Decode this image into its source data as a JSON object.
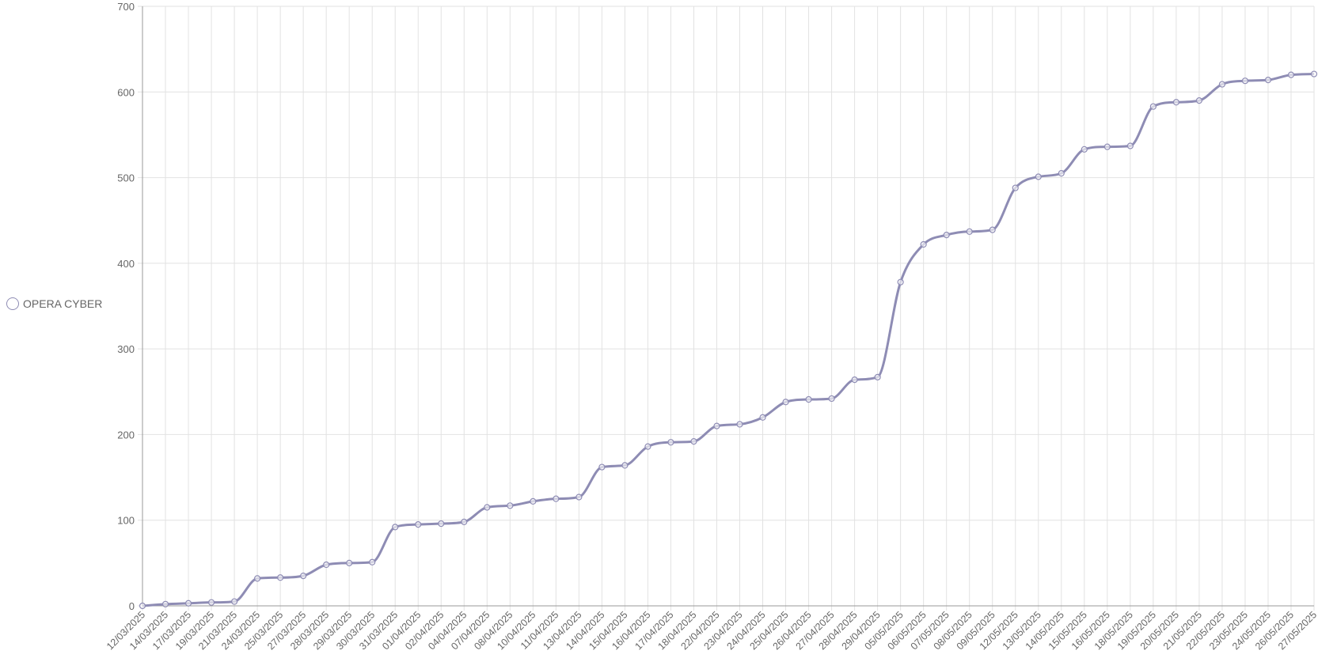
{
  "chart_data": {
    "type": "line",
    "title": "",
    "xlabel": "",
    "ylabel": "",
    "ylim": [
      0,
      700
    ],
    "yticks": [
      0,
      100,
      200,
      300,
      400,
      500,
      600,
      700
    ],
    "grid": true,
    "legend_position": "left",
    "colors": {
      "series": "#8e8cb4",
      "grid": "#e2e2e2",
      "axis": "#999999",
      "text": "#666666"
    },
    "categories": [
      "12/03/2025",
      "14/03/2025",
      "17/03/2025",
      "19/03/2025",
      "21/03/2025",
      "24/03/2025",
      "25/03/2025",
      "27/03/2025",
      "28/03/2025",
      "29/03/2025",
      "30/03/2025",
      "31/03/2025",
      "01/04/2025",
      "02/04/2025",
      "04/04/2025",
      "07/04/2025",
      "08/04/2025",
      "10/04/2025",
      "11/04/2025",
      "13/04/2025",
      "14/04/2025",
      "15/04/2025",
      "16/04/2025",
      "17/04/2025",
      "18/04/2025",
      "22/04/2025",
      "23/04/2025",
      "24/04/2025",
      "25/04/2025",
      "26/04/2025",
      "27/04/2025",
      "28/04/2025",
      "29/04/2025",
      "05/05/2025",
      "06/05/2025",
      "07/05/2025",
      "08/05/2025",
      "09/05/2025",
      "12/05/2025",
      "13/05/2025",
      "14/05/2025",
      "15/05/2025",
      "16/05/2025",
      "18/05/2025",
      "19/05/2025",
      "20/05/2025",
      "21/05/2025",
      "22/05/2025",
      "23/05/2025",
      "24/05/2025",
      "26/05/2025",
      "27/05/2025"
    ],
    "series": [
      {
        "name": "OPERA CYBER",
        "values": [
          0,
          2,
          3,
          4,
          5,
          32,
          33,
          35,
          48,
          50,
          51,
          92,
          95,
          96,
          98,
          115,
          117,
          122,
          125,
          127,
          162,
          164,
          186,
          191,
          192,
          210,
          212,
          220,
          238,
          241,
          242,
          264,
          267,
          378,
          422,
          433,
          437,
          439,
          488,
          501,
          505,
          533,
          536,
          537,
          583,
          588,
          590,
          609,
          613,
          614,
          620,
          621
        ]
      }
    ]
  }
}
